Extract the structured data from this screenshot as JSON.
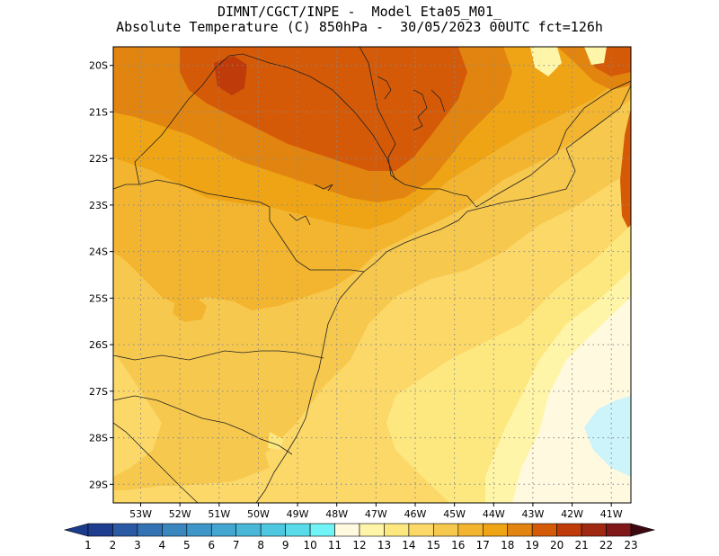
{
  "header": {
    "line1": "DIMNT/CGCT/INPE -  Model Eta05_M01_",
    "line2": "Absolute Temperature (C) 850hPa -  30/05/2023 00UTC fct=126h"
  },
  "map": {
    "lat_labels": [
      "20S",
      "21S",
      "22S",
      "23S",
      "24S",
      "25S",
      "26S",
      "27S",
      "28S",
      "29S"
    ],
    "lon_labels": [
      "53W",
      "52W",
      "51W",
      "50W",
      "49W",
      "48W",
      "47W",
      "46W",
      "45W",
      "44W",
      "43W",
      "42W",
      "41W"
    ],
    "lat_range": [
      -19.6,
      -29.4
    ],
    "lon_range": [
      -53.7,
      -40.5
    ]
  },
  "colorbar": {
    "labels": [
      "1",
      "2",
      "3",
      "4",
      "5",
      "6",
      "7",
      "8",
      "9",
      "10",
      "11",
      "12",
      "13",
      "14",
      "15",
      "16",
      "17",
      "18",
      "19",
      "20",
      "21",
      "22",
      "23"
    ],
    "colors": [
      "#1f3d8f",
      "#2a5aa3",
      "#3473b3",
      "#3a86bf",
      "#3f96c8",
      "#43a6d0",
      "#48b7d8",
      "#4ec8e0",
      "#59dbe9",
      "#6ff3f5",
      "#fff9df",
      "#fff5a8",
      "#fde880",
      "#fbd868",
      "#f7c84e",
      "#f3b52f",
      "#efa415",
      "#e28510",
      "#d55a08",
      "#c03b0a",
      "#a02810",
      "#80181a",
      "#5e0b18"
    ],
    "low_arrow_color": "#1b3a8a",
    "high_arrow_color": "#3e0810"
  },
  "field_colors": {
    "t14": "#fbd868",
    "t15": "#f7c84e",
    "t16": "#f3b52f",
    "t17": "#efa415",
    "t18": "#e28510",
    "t19": "#d55a08",
    "t20": "#c03b0a",
    "t13": "#fde880",
    "t12": "#fff5a8",
    "t11": "#fff9df",
    "t10": "#cdf3fb"
  }
}
